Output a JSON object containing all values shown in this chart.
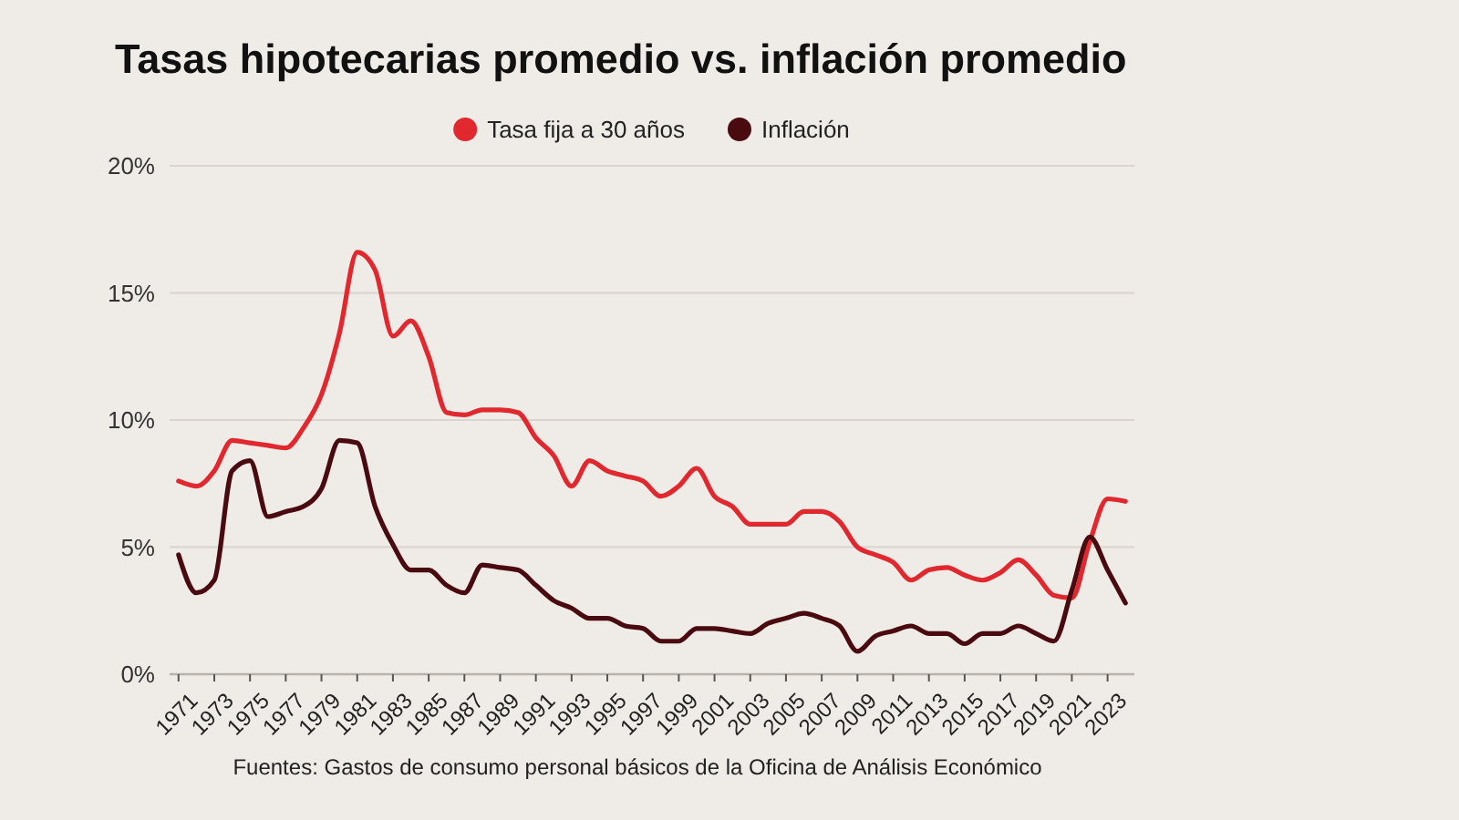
{
  "chart_data": {
    "type": "line",
    "title": "Tasas hipotecarias promedio vs. inflación promedio",
    "legend": "top",
    "grid": "y",
    "x": [
      1971,
      1972,
      1973,
      1974,
      1975,
      1976,
      1977,
      1978,
      1979,
      1980,
      1981,
      1982,
      1983,
      1984,
      1985,
      1986,
      1987,
      1988,
      1989,
      1990,
      1991,
      1992,
      1993,
      1994,
      1995,
      1996,
      1997,
      1998,
      1999,
      2000,
      2001,
      2002,
      2003,
      2004,
      2005,
      2006,
      2007,
      2008,
      2009,
      2010,
      2011,
      2012,
      2013,
      2014,
      2015,
      2016,
      2017,
      2018,
      2019,
      2020,
      2021,
      2022,
      2023,
      2024
    ],
    "series": [
      {
        "name": "Tasa fija a 30 años",
        "color": "#e0282e",
        "values": [
          7.6,
          7.4,
          8.0,
          9.2,
          9.1,
          9.0,
          8.9,
          9.7,
          11.0,
          13.4,
          16.6,
          15.9,
          13.3,
          13.9,
          12.5,
          10.3,
          10.2,
          10.4,
          10.4,
          10.3,
          9.3,
          8.6,
          7.4,
          8.4,
          8.0,
          7.8,
          7.6,
          7.0,
          7.4,
          8.1,
          7.0,
          6.6,
          5.9,
          5.9,
          5.9,
          6.4,
          6.4,
          6.0,
          5.0,
          4.7,
          4.4,
          3.7,
          4.1,
          4.2,
          3.9,
          3.7,
          4.0,
          4.5,
          3.9,
          3.1,
          3.0,
          5.2,
          6.9,
          6.8
        ]
      },
      {
        "name": "Inflación",
        "color": "#4a0b10",
        "values": [
          4.7,
          3.2,
          3.7,
          8.0,
          8.4,
          6.2,
          6.4,
          6.6,
          7.3,
          9.2,
          9.1,
          6.6,
          5.1,
          4.1,
          4.1,
          3.5,
          3.2,
          4.3,
          4.2,
          4.1,
          3.5,
          2.9,
          2.6,
          2.2,
          2.2,
          1.9,
          1.8,
          1.3,
          1.3,
          1.8,
          1.8,
          1.7,
          1.6,
          2.0,
          2.2,
          2.4,
          2.2,
          1.9,
          0.9,
          1.5,
          1.7,
          1.9,
          1.6,
          1.6,
          1.2,
          1.6,
          1.6,
          1.9,
          1.6,
          1.3,
          3.3,
          5.4,
          4.1,
          2.8
        ]
      }
    ],
    "xlim": [
      1970.5,
      2024.5
    ],
    "xticks": [
      1971,
      1973,
      1975,
      1977,
      1979,
      1981,
      1983,
      1985,
      1987,
      1989,
      1991,
      1993,
      1995,
      1997,
      1999,
      2001,
      2003,
      2005,
      2007,
      2009,
      2011,
      2013,
      2015,
      2017,
      2019,
      2021,
      2023
    ],
    "ylim": [
      0,
      20
    ],
    "yticks": [
      {
        "value": 0,
        "label": "0%"
      },
      {
        "value": 5,
        "label": "5%"
      },
      {
        "value": 10,
        "label": "10%"
      },
      {
        "value": 15,
        "label": "15%"
      },
      {
        "value": 20,
        "label": "20%"
      }
    ],
    "annotations": [
      "Fuentes: Gastos de consumo personal básicos de la Oficina de Análisis Económico"
    ]
  }
}
